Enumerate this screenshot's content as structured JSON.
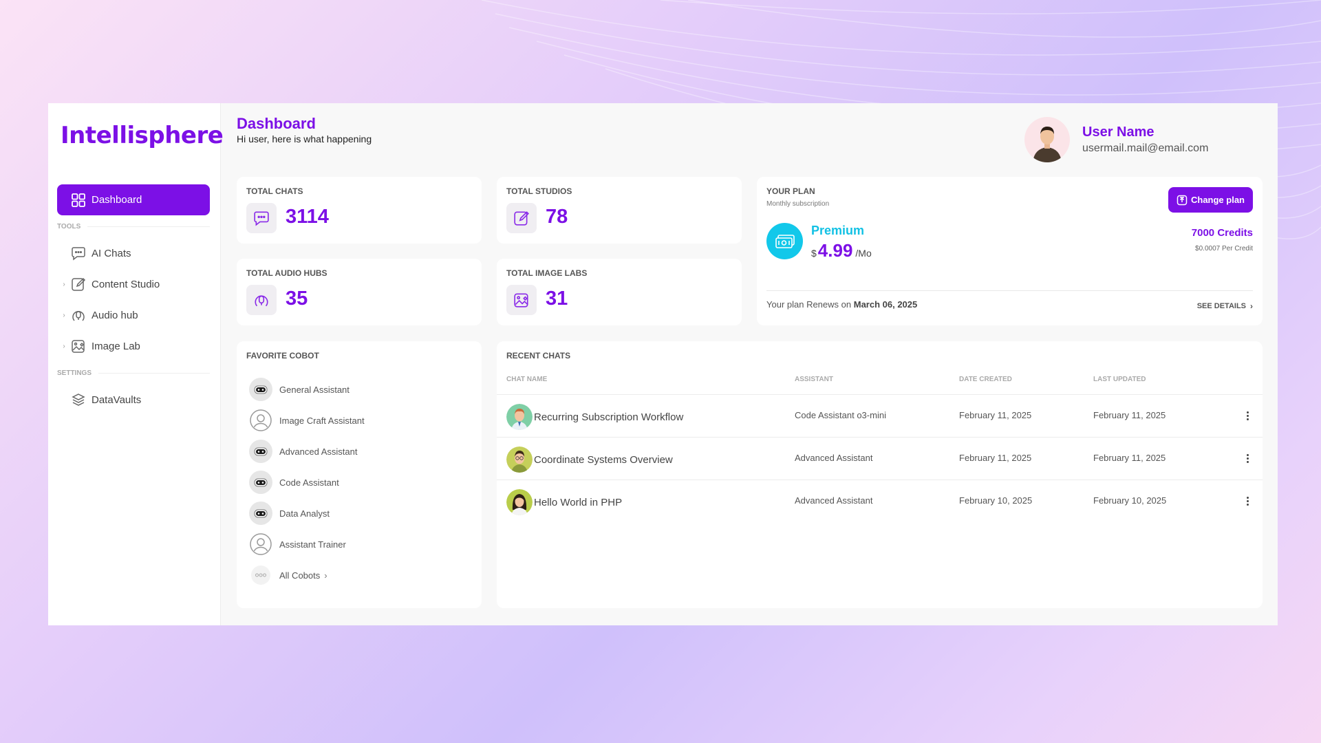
{
  "app": {
    "logo": "Intellisphere"
  },
  "sidebar": {
    "active": {
      "label": "Dashboard",
      "icon": "grid-icon"
    },
    "tools_label": "TOOLS",
    "tools": [
      {
        "label": "AI Chats",
        "icon": "chat-icon",
        "expandable": false
      },
      {
        "label": "Content Studio",
        "icon": "edit-icon",
        "expandable": true
      },
      {
        "label": "Audio hub",
        "icon": "audio-icon",
        "expandable": true
      },
      {
        "label": "Image Lab",
        "icon": "image-edit-icon",
        "expandable": true
      }
    ],
    "settings_label": "SETTINGS",
    "settings": [
      {
        "label": "DataVaults",
        "icon": "layers-icon"
      }
    ]
  },
  "header": {
    "title": "Dashboard",
    "subtitle": "Hi user, here is what happening",
    "user_name": "User Name",
    "user_email": "usermail.mail@email.com"
  },
  "stats": [
    {
      "label": "TOTAL CHATS",
      "value": "3114",
      "icon": "chat-icon"
    },
    {
      "label": "TOTAL STUDIOS",
      "value": "78",
      "icon": "edit-icon"
    },
    {
      "label": "TOTAL AUDIO HUBS",
      "value": "35",
      "icon": "audio-icon"
    },
    {
      "label": "TOTAL IMAGE LABS",
      "value": "31",
      "icon": "image-edit-icon"
    }
  ],
  "plan": {
    "label": "YOUR PLAN",
    "subscription": "Monthly subscription",
    "change_button": "Change plan",
    "name": "Premium",
    "currency": "$",
    "price": "4.99",
    "period": "/Mo",
    "credits": "7000 Credits",
    "credit_rate": "$0.0007 Per Credit",
    "renew_text": "Your plan Renews on",
    "renew_date": "March 06, 2025",
    "see_details": "SEE DETAILS"
  },
  "favorites": {
    "title": "FAVORITE COBOT",
    "items": [
      {
        "label": "General Assistant",
        "icon": "robot-icon"
      },
      {
        "label": "Image Craft Assistant",
        "icon": "user-outline-icon"
      },
      {
        "label": "Advanced Assistant",
        "icon": "robot-icon"
      },
      {
        "label": "Code Assistant",
        "icon": "robot-icon"
      },
      {
        "label": "Data Analyst",
        "icon": "robot-icon"
      },
      {
        "label": "Assistant Trainer",
        "icon": "user-outline-icon"
      }
    ],
    "all_label": "All Cobots"
  },
  "recent": {
    "title": "RECENT CHATS",
    "columns": [
      "CHAT NAME",
      "ASSISTANT",
      "DATE CREATED",
      "LAST UPDATED"
    ],
    "rows": [
      {
        "name": "Recurring Subscription Workflow",
        "assistant": "Code Assistant o3-mini",
        "created": "February 11, 2025",
        "updated": "February 11, 2025"
      },
      {
        "name": "Coordinate Systems Overview",
        "assistant": "Advanced Assistant",
        "created": "February 11, 2025",
        "updated": "February 11, 2025"
      },
      {
        "name": "Hello World in PHP",
        "assistant": "Advanced Assistant",
        "created": "February 10, 2025",
        "updated": "February 10, 2025"
      }
    ]
  },
  "colors": {
    "accent": "#7c10e6",
    "plan_accent": "#12c8ea"
  }
}
